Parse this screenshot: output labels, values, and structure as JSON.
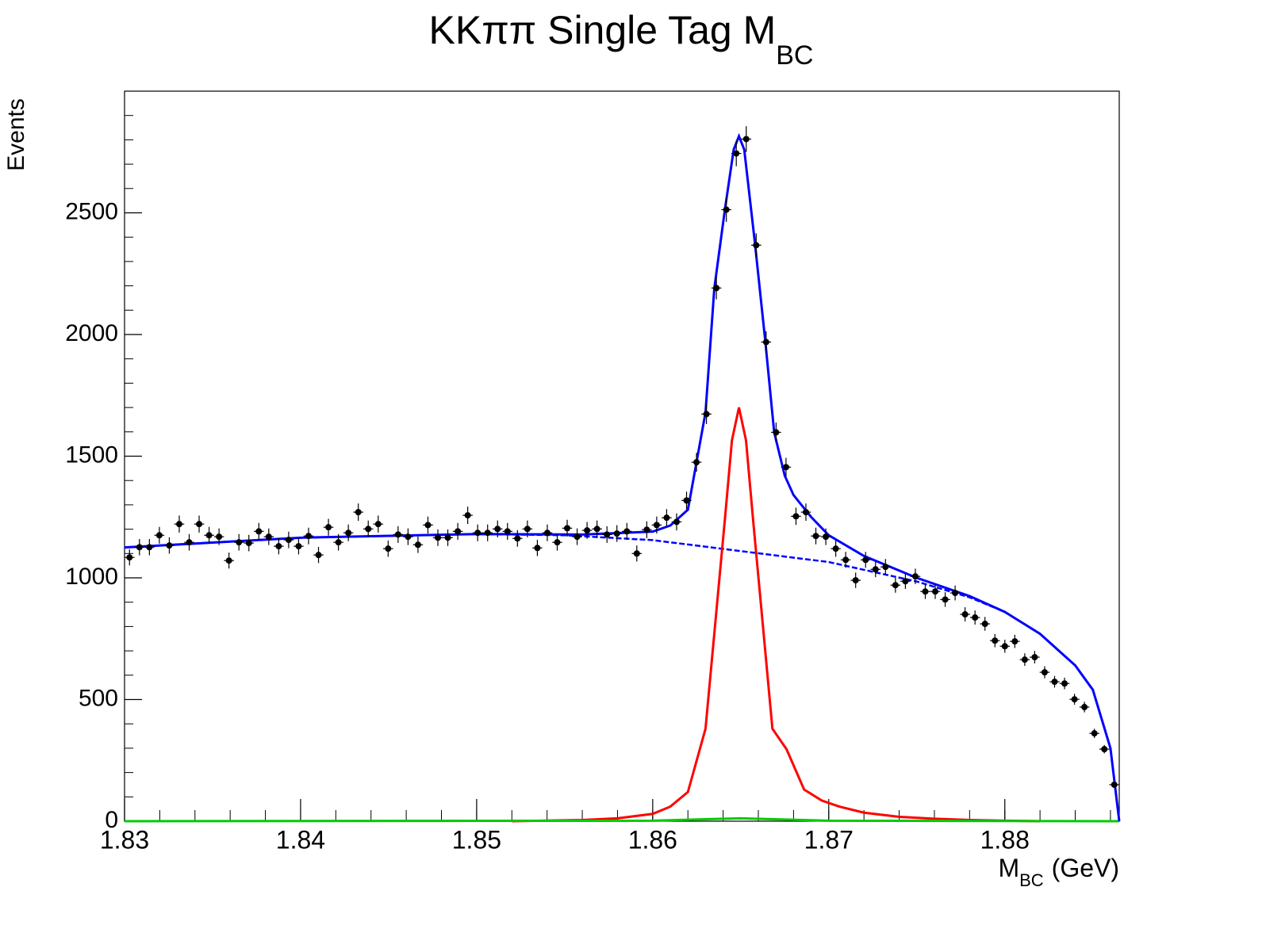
{
  "chart_data": {
    "type": "histogram",
    "title": "KKππ Single Tag M",
    "title_sub": "BC",
    "x_label": "M",
    "x_label_sub": "BC",
    "x_label_unit": "(GeV)",
    "y_label": "Events",
    "xlim": [
      1.83,
      1.8865
    ],
    "ylim": [
      0,
      3000
    ],
    "xticks": [
      1.83,
      1.84,
      1.85,
      1.86,
      1.87,
      1.88
    ],
    "yticks": [
      0,
      500,
      1000,
      1500,
      2000,
      2500
    ],
    "minor_divisions": 5,
    "bin_width": 0.000565,
    "color": "#000000",
    "values": [
      1084,
      1126,
      1126,
      1175,
      1133,
      1221,
      1146,
      1221,
      1175,
      1169,
      1071,
      1146,
      1143,
      1191,
      1169,
      1130,
      1156,
      1130,
      1172,
      1094,
      1208,
      1146,
      1185,
      1270,
      1201,
      1221,
      1120,
      1178,
      1169,
      1136,
      1217,
      1165,
      1165,
      1191,
      1257,
      1185,
      1185,
      1201,
      1191,
      1162,
      1201,
      1123,
      1185,
      1146,
      1204,
      1169,
      1195,
      1201,
      1178,
      1182,
      1191,
      1100,
      1198,
      1217,
      1247,
      1230,
      1318,
      1475,
      1673,
      2191,
      2513,
      2744,
      2803,
      2367,
      1969,
      1598,
      1455,
      1253,
      1270,
      1172,
      1169,
      1120,
      1074,
      990,
      1074,
      1035,
      1045,
      970,
      986,
      1006,
      944,
      944,
      911,
      938,
      850,
      837,
      811,
      742,
      719,
      739,
      664,
      674,
      612,
      573,
      566,
      501,
      469,
      361,
      296,
      150
    ],
    "curves": [
      {
        "color": "#0000ff",
        "dashed": true,
        "x": [
          1.83,
          1.84,
          1.85,
          1.855,
          1.86,
          1.865,
          1.87,
          1.875,
          1.878,
          1.88,
          1.882,
          1.884,
          1.885,
          1.886,
          1.8865
        ],
        "values": [
          1125,
          1165,
          1180,
          1175,
          1155,
          1110,
          1065,
          985,
          920,
          860,
          770,
          640,
          540,
          300,
          0
        ]
      },
      {
        "color": "#ff0000",
        "dashed": false,
        "x": [
          1.852,
          1.856,
          1.858,
          1.86,
          1.861,
          1.862,
          1.863,
          1.8636,
          1.8641,
          1.8645,
          1.8649,
          1.8653,
          1.8657,
          1.8662,
          1.8668,
          1.8676,
          1.8686,
          1.8696,
          1.8706,
          1.872,
          1.874,
          1.876,
          1.878,
          1.88,
          1.882
        ],
        "values": [
          0,
          5,
          12,
          30,
          60,
          120,
          380,
          850,
          1240,
          1565,
          1700,
          1565,
          1240,
          850,
          380,
          296,
          130,
          85,
          60,
          35,
          18,
          10,
          5,
          2,
          0
        ]
      },
      {
        "color": "#00cc00",
        "dashed": false,
        "x": [
          1.83,
          1.86,
          1.865,
          1.87,
          1.8865
        ],
        "values": [
          0,
          2,
          12,
          2,
          0
        ]
      },
      {
        "color": "#0000ff",
        "dashed": false,
        "x": [
          1.83,
          1.84,
          1.85,
          1.856,
          1.86,
          1.861,
          1.862,
          1.863,
          1.8635,
          1.8641,
          1.8646,
          1.8649,
          1.8652,
          1.8658,
          1.8664,
          1.8669,
          1.8675,
          1.868,
          1.869,
          1.87,
          1.872,
          1.875,
          1.878,
          1.88,
          1.882,
          1.884,
          1.885,
          1.886,
          1.8865
        ],
        "values": [
          1125,
          1165,
          1180,
          1178,
          1190,
          1215,
          1280,
          1680,
          2190,
          2513,
          2760,
          2815,
          2760,
          2380,
          1969,
          1598,
          1420,
          1340,
          1250,
          1175,
          1090,
          1000,
          925,
          860,
          770,
          640,
          540,
          300,
          0
        ]
      }
    ]
  }
}
